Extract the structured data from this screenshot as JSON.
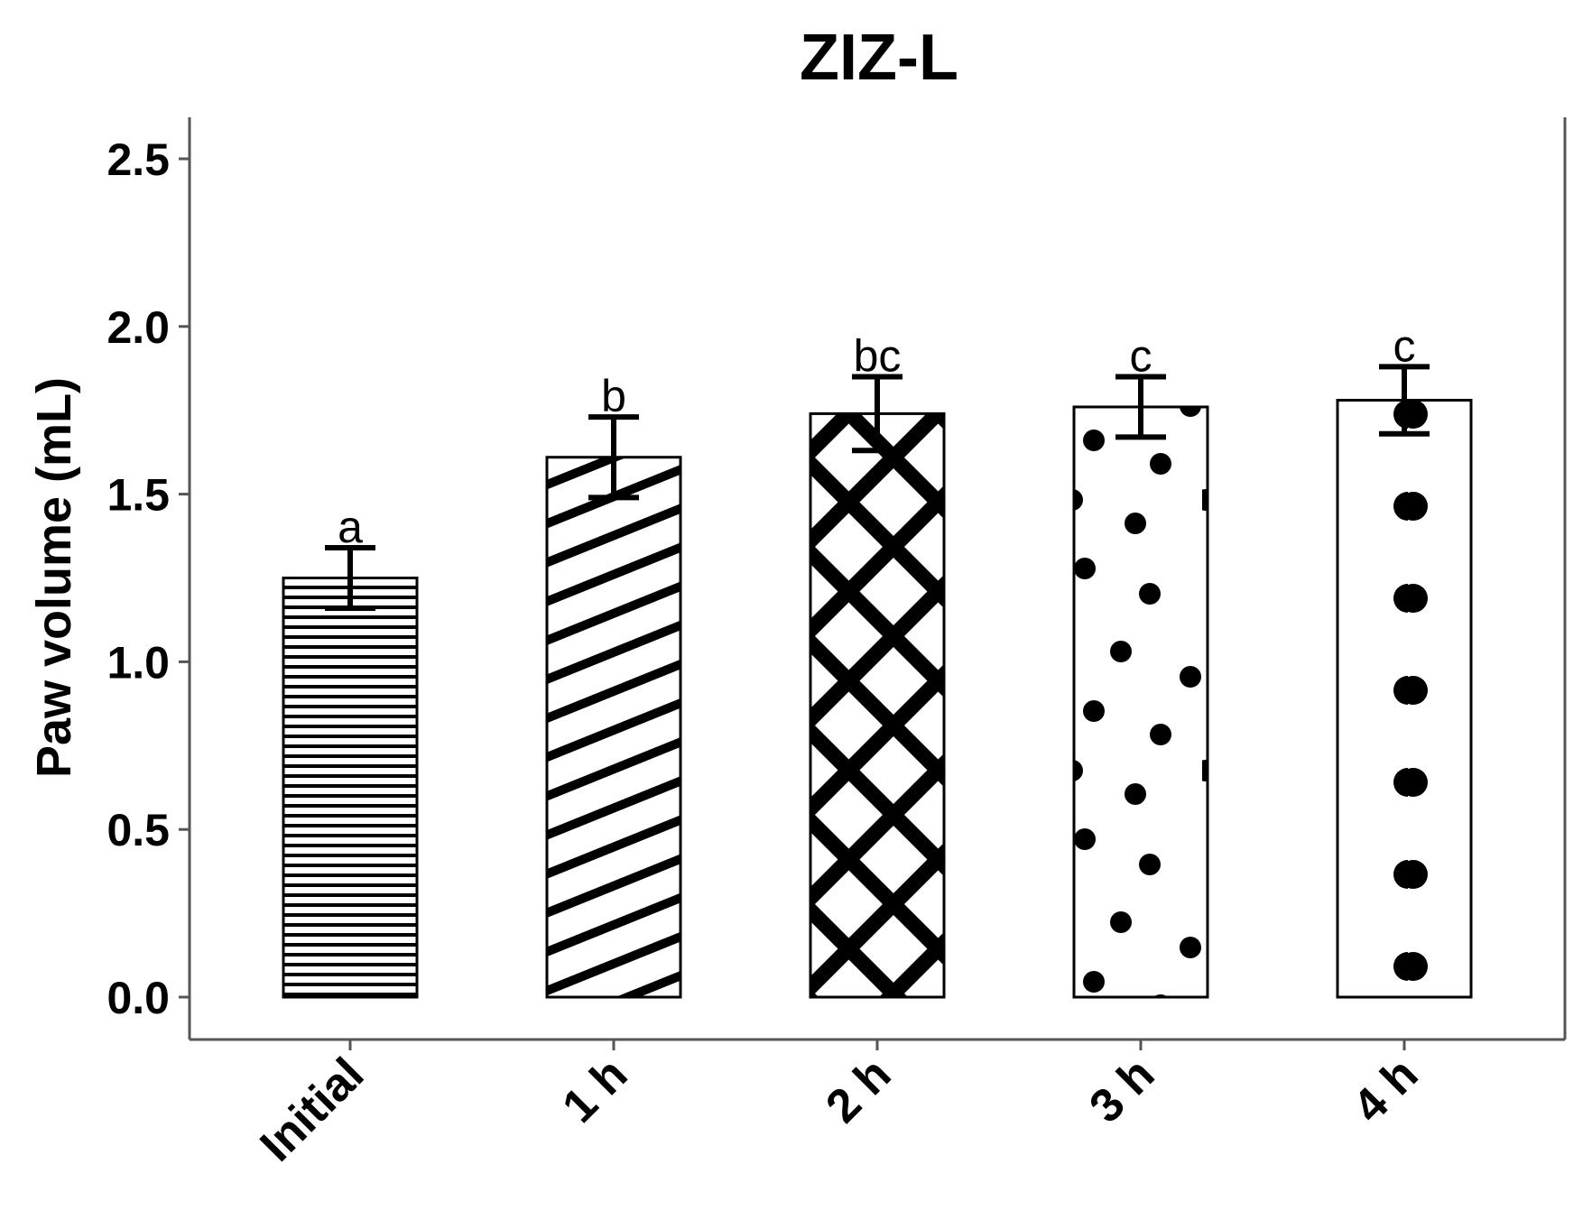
{
  "chart_data": {
    "type": "bar",
    "title": "ZIZ-L",
    "xlabel": "",
    "ylabel": "Paw volume (mL)",
    "ylim": [
      -0.13,
      2.6
    ],
    "yticks": [
      "0.0",
      "0.5",
      "1.0",
      "1.5",
      "2.0",
      "2.5"
    ],
    "categories": [
      "Initial",
      "1 h",
      "2 h",
      "3 h",
      "4 h"
    ],
    "values": [
      1.25,
      1.61,
      1.74,
      1.76,
      1.78
    ],
    "error": [
      0.09,
      0.12,
      0.11,
      0.09,
      0.1
    ],
    "significance": [
      "a",
      "b",
      "bc",
      "c",
      "c"
    ],
    "patterns": [
      "horizontal-lines",
      "diagonal-stripes",
      "crosshatch",
      "random-dots",
      "grid-dots"
    ],
    "grid": false,
    "colors": {
      "ink": "#000000",
      "fill": "#ffffff",
      "axis": "#555555"
    }
  }
}
